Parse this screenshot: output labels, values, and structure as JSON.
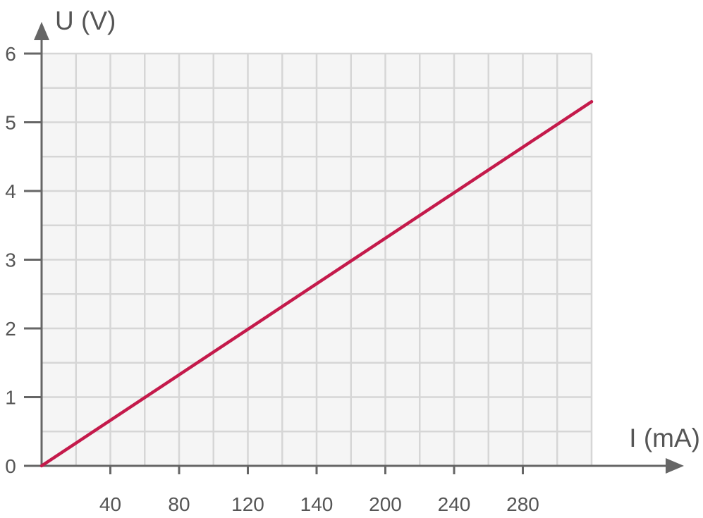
{
  "chart_data": {
    "type": "line",
    "xlabel": "I (mA)",
    "ylabel": "U (V)",
    "x_tick_labels": [
      "40",
      "80",
      "120",
      "140",
      "200",
      "240",
      "280"
    ],
    "y_tick_labels": [
      "0",
      "1",
      "2",
      "3",
      "4",
      "5",
      "6"
    ],
    "xlim": [
      0,
      320
    ],
    "ylim": [
      0,
      6
    ],
    "grid": true,
    "series": [
      {
        "x": [
          0,
          320
        ],
        "y": [
          0,
          5.3
        ]
      }
    ],
    "colors": {
      "line": "#c41a4b",
      "axis": "#666666",
      "grid": "#d6d6d6",
      "plot_background": "#f5f5f5"
    }
  }
}
